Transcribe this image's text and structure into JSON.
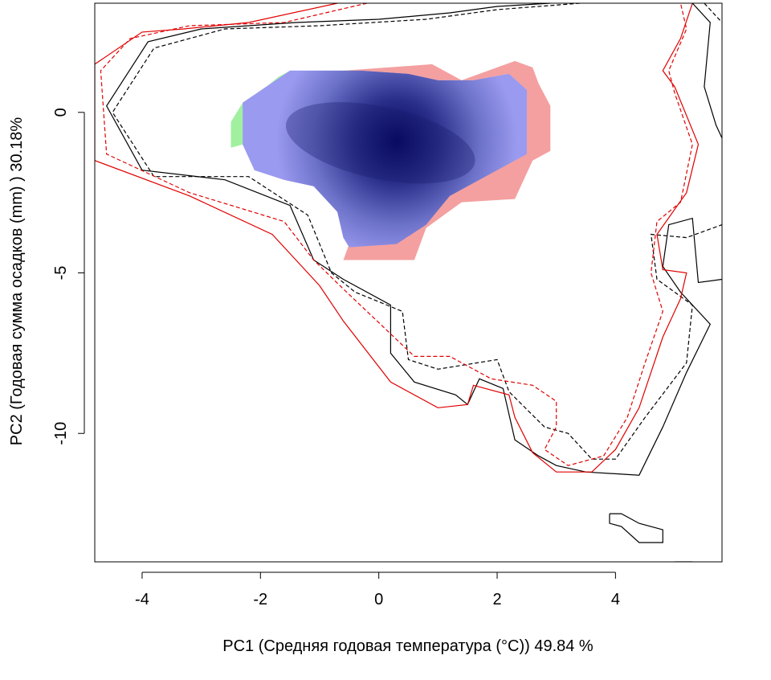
{
  "chart_data": {
    "type": "heatmap",
    "title": "",
    "xlabel": "PC1 (Средняя годовая температура (°C)) 49.84 %",
    "ylabel": "PC2 (Годовая сумма осадков  (mm) ) 30.18%",
    "xlim": [
      -4.8,
      5.8
    ],
    "ylim": [
      -14.0,
      3.4
    ],
    "x_ticks": [
      -4,
      -2,
      0,
      2,
      4
    ],
    "y_ticks": [
      0,
      -5,
      -10
    ],
    "x_tick_labels": [
      "-4",
      "-2",
      "0",
      "2",
      "4"
    ],
    "y_tick_labels": [
      "0",
      "-5",
      "-10"
    ],
    "grid": false,
    "legend": "none",
    "colors": {
      "density_low": "#aab0f2",
      "density_high": "#000060",
      "niche_overlap": "#9a9af0",
      "niche_a_only": "#f4a0a0",
      "niche_b_only": "#a0f0a0",
      "contour_black": "#000000",
      "contour_red": "#e00000"
    },
    "density_peak": [
      0.3,
      -0.9
    ],
    "niche_regions": [
      {
        "name": "overlap",
        "color": "#9a9af0",
        "polygon": [
          [
            -2.3,
            0.3
          ],
          [
            -1.5,
            1.3
          ],
          [
            -0.3,
            1.3
          ],
          [
            0.5,
            1.2
          ],
          [
            1.0,
            1.0
          ],
          [
            1.6,
            1.0
          ],
          [
            2.2,
            1.2
          ],
          [
            2.5,
            0.7
          ],
          [
            2.5,
            -1.3
          ],
          [
            2.0,
            -1.8
          ],
          [
            1.2,
            -2.6
          ],
          [
            0.8,
            -3.5
          ],
          [
            0.3,
            -4.1
          ],
          [
            -0.5,
            -4.2
          ],
          [
            -0.6,
            -3.9
          ],
          [
            -0.7,
            -3.1
          ],
          [
            -1.1,
            -2.3
          ],
          [
            -1.6,
            -2.1
          ],
          [
            -2.1,
            -1.8
          ],
          [
            -2.3,
            -1.0
          ]
        ]
      },
      {
        "name": "red_only",
        "color": "#f4a0a0",
        "polygon": [
          [
            -0.6,
            1.3
          ],
          [
            0.9,
            1.5
          ],
          [
            1.4,
            1.0
          ],
          [
            2.0,
            1.4
          ],
          [
            2.3,
            1.6
          ],
          [
            2.6,
            1.4
          ],
          [
            2.7,
            0.9
          ],
          [
            2.9,
            0.2
          ],
          [
            2.9,
            -1.2
          ],
          [
            2.6,
            -1.5
          ],
          [
            2.3,
            -2.7
          ],
          [
            1.4,
            -2.8
          ],
          [
            0.8,
            -3.6
          ],
          [
            0.6,
            -4.6
          ],
          [
            -0.6,
            -4.6
          ],
          [
            -0.5,
            -4.1
          ],
          [
            0.3,
            -4.0
          ],
          [
            0.8,
            -3.3
          ],
          [
            1.2,
            -2.5
          ],
          [
            2.0,
            -1.7
          ],
          [
            2.5,
            -1.3
          ],
          [
            2.5,
            0.7
          ],
          [
            2.2,
            1.2
          ],
          [
            1.6,
            1.0
          ],
          [
            1.0,
            1.0
          ],
          [
            0.5,
            1.2
          ],
          [
            -0.3,
            1.3
          ]
        ]
      },
      {
        "name": "green_only",
        "color": "#a0f0a0",
        "polygon": [
          [
            -2.5,
            -0.3
          ],
          [
            -2.3,
            0.3
          ],
          [
            -1.5,
            1.3
          ],
          [
            -1.7,
            1.1
          ],
          [
            -2.3,
            0.2
          ],
          [
            -2.3,
            -1.0
          ],
          [
            -2.5,
            -1.1
          ]
        ]
      }
    ],
    "contours": [
      {
        "color": "#000000",
        "dash": "solid",
        "points": [
          [
            2.9,
            3.4
          ],
          [
            2.0,
            3.3
          ],
          [
            1.2,
            3.1
          ],
          [
            0.0,
            2.9
          ],
          [
            -1.4,
            2.8
          ],
          [
            -3.0,
            2.6
          ],
          [
            -3.9,
            2.2
          ],
          [
            -4.6,
            0.2
          ],
          [
            -4.0,
            -1.8
          ],
          [
            -2.6,
            -2.1
          ],
          [
            -1.5,
            -2.9
          ],
          [
            -1.1,
            -4.6
          ],
          [
            -0.6,
            -5.2
          ],
          [
            0.2,
            -6.0
          ],
          [
            0.2,
            -7.5
          ],
          [
            0.6,
            -8.4
          ],
          [
            1.3,
            -8.8
          ],
          [
            1.5,
            -9.1
          ],
          [
            1.7,
            -8.3
          ],
          [
            2.1,
            -8.6
          ],
          [
            2.3,
            -10.2
          ],
          [
            2.7,
            -10.7
          ],
          [
            3.0,
            -11.0
          ],
          [
            3.5,
            -11.2
          ],
          [
            4.4,
            -11.3
          ],
          [
            4.8,
            -9.8
          ],
          [
            5.2,
            -8.1
          ],
          [
            5.6,
            -6.6
          ],
          [
            5.1,
            -5.6
          ],
          [
            4.8,
            -4.8
          ],
          [
            4.9,
            -3.5
          ],
          [
            5.3,
            -3.3
          ],
          [
            5.4,
            -5.3
          ],
          [
            5.8,
            -5.2
          ]
        ]
      },
      {
        "color": "#000000",
        "dash": "dashed",
        "points": [
          [
            3.4,
            3.4
          ],
          [
            2.0,
            3.2
          ],
          [
            0.8,
            2.9
          ],
          [
            -1.0,
            2.7
          ],
          [
            -2.6,
            2.6
          ],
          [
            -3.8,
            2.0
          ],
          [
            -4.5,
            0.0
          ],
          [
            -3.8,
            -2.0
          ],
          [
            -2.2,
            -2.0
          ],
          [
            -1.2,
            -3.2
          ],
          [
            -0.8,
            -5.0
          ],
          [
            -0.4,
            -5.6
          ],
          [
            0.4,
            -6.2
          ],
          [
            0.5,
            -7.7
          ],
          [
            1.0,
            -8.0
          ],
          [
            2.0,
            -7.7
          ],
          [
            2.2,
            -8.7
          ],
          [
            2.8,
            -9.8
          ],
          [
            3.2,
            -10.0
          ],
          [
            3.6,
            -10.8
          ],
          [
            4.0,
            -10.8
          ],
          [
            4.5,
            -9.5
          ],
          [
            5.2,
            -7.8
          ],
          [
            5.3,
            -6.0
          ],
          [
            4.7,
            -5.2
          ],
          [
            4.6,
            -3.8
          ],
          [
            5.2,
            -3.9
          ],
          [
            5.8,
            -3.5
          ]
        ]
      },
      {
        "color": "#e00000",
        "dash": "solid",
        "points": [
          [
            -0.7,
            3.4
          ],
          [
            -2.2,
            2.8
          ],
          [
            -3.3,
            2.6
          ],
          [
            -4.0,
            2.5
          ],
          [
            -4.8,
            1.5
          ],
          [
            -4.8,
            -1.5
          ],
          [
            -3.2,
            -2.6
          ],
          [
            -1.8,
            -3.8
          ],
          [
            -1.3,
            -4.8
          ],
          [
            -1.0,
            -5.4
          ],
          [
            -0.6,
            -6.5
          ],
          [
            0.2,
            -8.4
          ],
          [
            1.0,
            -9.2
          ],
          [
            1.5,
            -9.1
          ],
          [
            1.6,
            -8.5
          ],
          [
            2.2,
            -8.8
          ],
          [
            2.3,
            -9.5
          ],
          [
            2.6,
            -10.6
          ],
          [
            3.0,
            -11.2
          ],
          [
            3.6,
            -11.2
          ],
          [
            4.0,
            -10.5
          ],
          [
            4.4,
            -9.2
          ],
          [
            4.8,
            -7.0
          ],
          [
            5.1,
            -5.8
          ],
          [
            5.2,
            -5.0
          ],
          [
            4.8,
            -4.9
          ],
          [
            4.7,
            -3.8
          ],
          [
            5.2,
            -2.5
          ],
          [
            5.4,
            -1.0
          ],
          [
            5.0,
            0.8
          ],
          [
            4.8,
            1.3
          ],
          [
            5.1,
            2.3
          ],
          [
            5.3,
            3.4
          ]
        ]
      },
      {
        "color": "#e00000",
        "dash": "dashed",
        "points": [
          [
            -0.2,
            3.4
          ],
          [
            -1.6,
            2.8
          ],
          [
            -3.2,
            2.7
          ],
          [
            -4.2,
            2.3
          ],
          [
            -4.7,
            1.3
          ],
          [
            -4.6,
            -1.3
          ],
          [
            -3.2,
            -2.5
          ],
          [
            -1.6,
            -3.4
          ],
          [
            -1.1,
            -4.6
          ],
          [
            -0.6,
            -5.5
          ],
          [
            -0.2,
            -6.2
          ],
          [
            0.6,
            -7.6
          ],
          [
            1.2,
            -7.6
          ],
          [
            1.9,
            -8.3
          ],
          [
            2.6,
            -8.5
          ],
          [
            3.0,
            -9.0
          ],
          [
            3.0,
            -9.8
          ],
          [
            2.8,
            -10.5
          ],
          [
            3.2,
            -11.0
          ],
          [
            3.8,
            -10.7
          ],
          [
            4.2,
            -9.5
          ],
          [
            4.5,
            -7.8
          ],
          [
            4.8,
            -6.2
          ],
          [
            4.6,
            -5.0
          ],
          [
            4.7,
            -3.4
          ],
          [
            5.1,
            -2.8
          ],
          [
            5.3,
            -1.0
          ],
          [
            5.0,
            0.6
          ],
          [
            4.9,
            1.3
          ],
          [
            5.2,
            2.6
          ],
          [
            5.1,
            3.4
          ]
        ]
      },
      {
        "color": "#000000",
        "dash": "solid",
        "points": [
          [
            5.3,
            3.4
          ],
          [
            5.6,
            2.8
          ],
          [
            5.5,
            0.8
          ],
          [
            5.7,
            -0.4
          ],
          [
            5.8,
            -0.8
          ]
        ]
      },
      {
        "color": "#000000",
        "dash": "dashed",
        "points": [
          [
            5.5,
            3.4
          ],
          [
            5.8,
            2.8
          ]
        ]
      },
      {
        "color": "#000000",
        "dash": "solid",
        "points": [
          [
            3.9,
            -12.5
          ],
          [
            4.1,
            -12.5
          ],
          [
            4.4,
            -12.8
          ],
          [
            4.8,
            -13.0
          ],
          [
            4.8,
            -13.4
          ],
          [
            4.4,
            -13.4
          ],
          [
            4.1,
            -12.9
          ],
          [
            3.9,
            -12.8
          ],
          [
            3.9,
            -12.5
          ]
        ]
      },
      {
        "color": "#000000",
        "dash": "solid",
        "points": [
          [
            5.0,
            -14.0
          ],
          [
            5.3,
            -14.0
          ],
          [
            5.4,
            -14.2
          ]
        ]
      }
    ]
  }
}
